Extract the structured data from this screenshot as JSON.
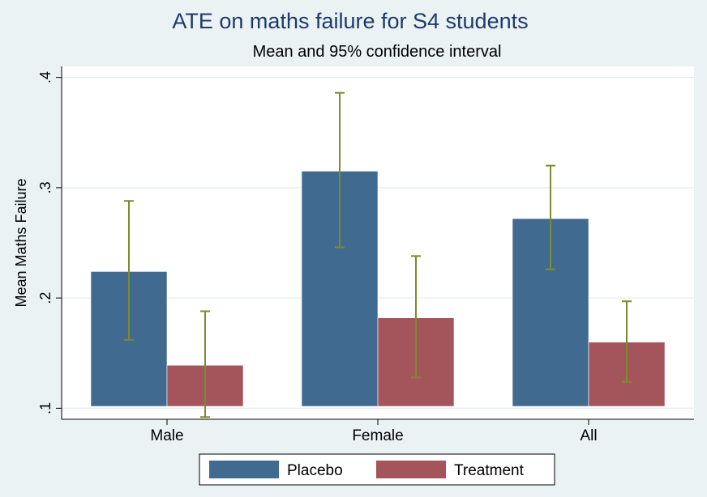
{
  "chart_data": {
    "type": "bar",
    "title": "ATE on maths failure for S4 students",
    "subtitle": "Mean and 95% confidence interval",
    "xlabel": "",
    "ylabel": "Mean Maths Failure",
    "ylim": [
      0.09,
      0.41
    ],
    "yticks": [
      0.1,
      0.2,
      0.3,
      0.4
    ],
    "ytick_labels": [
      ".1",
      ".2",
      ".3",
      ".4"
    ],
    "categories": [
      "Male",
      "Female",
      "All"
    ],
    "series": [
      {
        "name": "Placebo",
        "color": "#406a8f",
        "values": [
          0.224,
          0.315,
          0.272
        ],
        "ci_low": [
          0.162,
          0.246,
          0.226
        ],
        "ci_high": [
          0.288,
          0.386,
          0.32
        ]
      },
      {
        "name": "Treatment",
        "color": "#a4555c",
        "values": [
          0.139,
          0.182,
          0.16
        ],
        "ci_low": [
          0.092,
          0.128,
          0.124
        ],
        "ci_high": [
          0.188,
          0.238,
          0.197
        ]
      }
    ],
    "grid": true,
    "legend_position": "bottom",
    "errorbar_color": "#7a8c2e"
  }
}
